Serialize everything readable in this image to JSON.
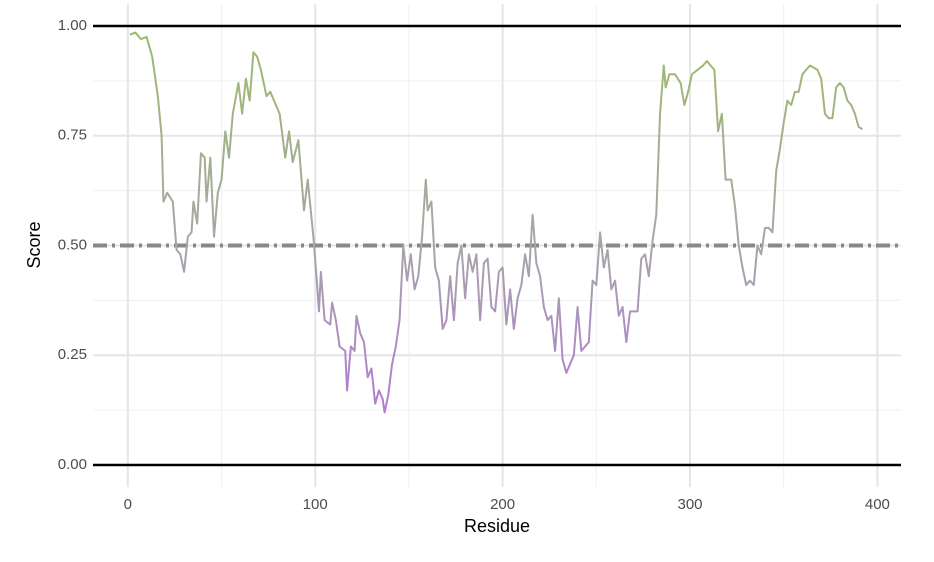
{
  "chart_data": {
    "type": "line",
    "xlabel": "Residue",
    "ylabel": "Score",
    "x": [
      1,
      4,
      7,
      10,
      13,
      16,
      18,
      19,
      21,
      24,
      26,
      28,
      30,
      32,
      34,
      35,
      37,
      39,
      41,
      42,
      44,
      46,
      48,
      50,
      52,
      54,
      56,
      59,
      61,
      63,
      65,
      67,
      69,
      71,
      74,
      76,
      78,
      81,
      84,
      86,
      88,
      91,
      94,
      96,
      99,
      101,
      102,
      103,
      105,
      108,
      109,
      111,
      113,
      116,
      117,
      119,
      121,
      122,
      124,
      126,
      128,
      130,
      132,
      134,
      136,
      137,
      139,
      141,
      143,
      145,
      147,
      149,
      151,
      153,
      155,
      157,
      159,
      160,
      162,
      164,
      166,
      168,
      170,
      172,
      174,
      176,
      178,
      180,
      182,
      184,
      186,
      188,
      190,
      192,
      194,
      196,
      198,
      200,
      202,
      204,
      206,
      208,
      210,
      212,
      214,
      216,
      218,
      220,
      222,
      224,
      226,
      228,
      230,
      232,
      234,
      236,
      238,
      240,
      242,
      244,
      246,
      248,
      250,
      252,
      254,
      256,
      258,
      260,
      262,
      264,
      266,
      268,
      270,
      272,
      274,
      276,
      278,
      280,
      282,
      284,
      286,
      287,
      289,
      292,
      295,
      297,
      299,
      301,
      304,
      307,
      309,
      311,
      313,
      315,
      317,
      319,
      322,
      324,
      326,
      328,
      330,
      332,
      334,
      336,
      338,
      340,
      342,
      344,
      346,
      348,
      350,
      352,
      354,
      356,
      358,
      360,
      362,
      364,
      366,
      368,
      370,
      372,
      374,
      376,
      378,
      380,
      382,
      384,
      386,
      388,
      390,
      392
    ],
    "series": [
      {
        "values": [
          0.98,
          0.985,
          0.97,
          0.975,
          0.93,
          0.84,
          0.75,
          0.6,
          0.62,
          0.6,
          0.49,
          0.48,
          0.44,
          0.52,
          0.53,
          0.6,
          0.55,
          0.71,
          0.7,
          0.6,
          0.7,
          0.52,
          0.62,
          0.65,
          0.76,
          0.7,
          0.8,
          0.87,
          0.8,
          0.88,
          0.83,
          0.94,
          0.93,
          0.9,
          0.84,
          0.85,
          0.83,
          0.8,
          0.7,
          0.76,
          0.69,
          0.74,
          0.58,
          0.65,
          0.52,
          0.41,
          0.35,
          0.44,
          0.33,
          0.32,
          0.37,
          0.33,
          0.27,
          0.26,
          0.17,
          0.27,
          0.26,
          0.34,
          0.3,
          0.28,
          0.2,
          0.22,
          0.14,
          0.17,
          0.15,
          0.12,
          0.16,
          0.23,
          0.27,
          0.33,
          0.5,
          0.42,
          0.48,
          0.4,
          0.43,
          0.52,
          0.65,
          0.58,
          0.6,
          0.45,
          0.42,
          0.31,
          0.33,
          0.43,
          0.33,
          0.46,
          0.5,
          0.38,
          0.48,
          0.44,
          0.48,
          0.33,
          0.46,
          0.47,
          0.36,
          0.35,
          0.44,
          0.45,
          0.32,
          0.4,
          0.31,
          0.38,
          0.41,
          0.48,
          0.43,
          0.57,
          0.46,
          0.43,
          0.36,
          0.33,
          0.34,
          0.26,
          0.38,
          0.24,
          0.21,
          0.23,
          0.25,
          0.36,
          0.26,
          0.27,
          0.28,
          0.42,
          0.41,
          0.53,
          0.45,
          0.49,
          0.4,
          0.42,
          0.34,
          0.36,
          0.28,
          0.35,
          0.35,
          0.35,
          0.47,
          0.48,
          0.43,
          0.51,
          0.57,
          0.8,
          0.91,
          0.86,
          0.89,
          0.89,
          0.87,
          0.82,
          0.85,
          0.89,
          0.9,
          0.91,
          0.92,
          0.91,
          0.9,
          0.76,
          0.8,
          0.65,
          0.65,
          0.59,
          0.5,
          0.45,
          0.41,
          0.42,
          0.41,
          0.5,
          0.48,
          0.54,
          0.54,
          0.53,
          0.67,
          0.72,
          0.78,
          0.83,
          0.82,
          0.85,
          0.85,
          0.89,
          0.9,
          0.91,
          0.905,
          0.9,
          0.88,
          0.8,
          0.79,
          0.79,
          0.86,
          0.87,
          0.86,
          0.83,
          0.82,
          0.8,
          0.77,
          0.765
        ]
      }
    ],
    "color_high": "#9dbb6b",
    "color_mid": "#a6a6a6",
    "color_low": "#b27ad8",
    "threshold": 0.5,
    "threshold_color": "#888888",
    "reference_lines": [
      0,
      1
    ],
    "xlim": [
      -18.6,
      412.6
    ],
    "xticks": [
      0,
      100,
      200,
      300,
      400
    ],
    "minor_xticks": [
      50,
      150,
      250,
      350
    ],
    "ylim": [
      -0.05,
      1.05
    ],
    "yticks": [
      {
        "value": 0,
        "label": "0.00"
      },
      {
        "value": 0.25,
        "label": "0.25"
      },
      {
        "value": 0.5,
        "label": "0.50"
      },
      {
        "value": 0.75,
        "label": "0.75"
      },
      {
        "value": 1,
        "label": "1.00"
      }
    ],
    "minor_yticks": [
      0.125,
      0.375,
      0.625,
      0.875
    ],
    "grid": true
  }
}
